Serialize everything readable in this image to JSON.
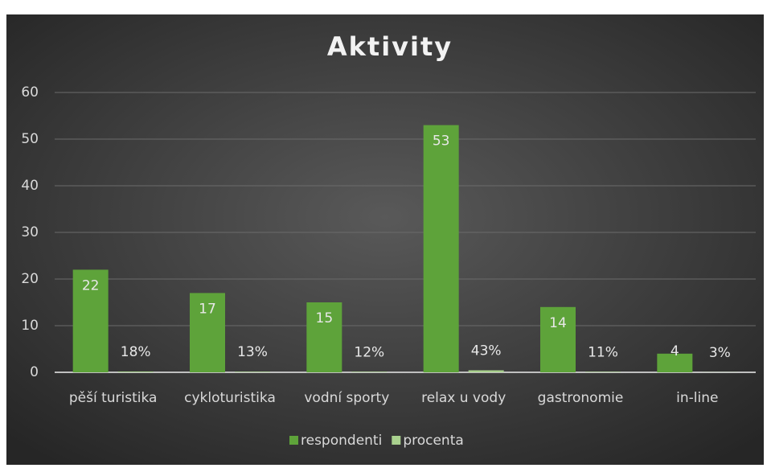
{
  "chart_data": {
    "type": "bar",
    "title": "Aktivity",
    "categories": [
      "pěší turistika",
      "cykloturistika",
      "vodní sporty",
      "relax u vody",
      "gastronomie",
      "in-line"
    ],
    "series": [
      {
        "name": "respondenti",
        "color": "#5ea33a",
        "values": [
          22,
          17,
          15,
          53,
          14,
          4
        ]
      },
      {
        "name": "procenta",
        "color": "#a9d18e",
        "values": [
          0.18,
          0.13,
          0.12,
          0.43,
          0.11,
          0.03
        ],
        "value_labels": [
          "18%",
          "13%",
          "12%",
          "43%",
          "11%",
          "3%"
        ]
      }
    ],
    "ylim": [
      0,
      60
    ],
    "yticks": [
      0,
      10,
      20,
      30,
      40,
      50,
      60
    ],
    "grid": true,
    "legend": "bottom"
  }
}
